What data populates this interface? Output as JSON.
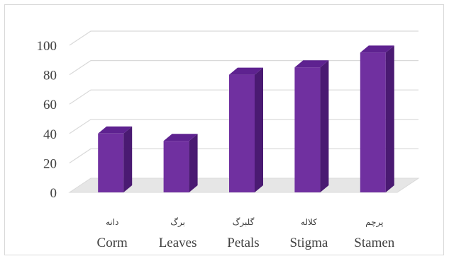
{
  "chart_data": {
    "type": "bar",
    "style": "3d-column",
    "categories": [
      "Corm",
      "Leaves",
      "Petals",
      "Stigma",
      "Stamen"
    ],
    "category_sublabels": [
      "دانه",
      "برگ",
      "گلبرگ",
      "کلاله",
      "پرچم"
    ],
    "values": [
      40,
      35,
      80,
      85,
      95
    ],
    "yticks": [
      "0",
      "20",
      "40",
      "60",
      "80",
      "100"
    ],
    "ylim": [
      0,
      100
    ],
    "grid": true,
    "legend": "none",
    "colors": {
      "bar_front": "#7030a0",
      "bar_top": "#5e2290",
      "bar_side": "#4a1a72",
      "grid": "#d9d9d9",
      "floor": "#e6e6e6"
    }
  }
}
